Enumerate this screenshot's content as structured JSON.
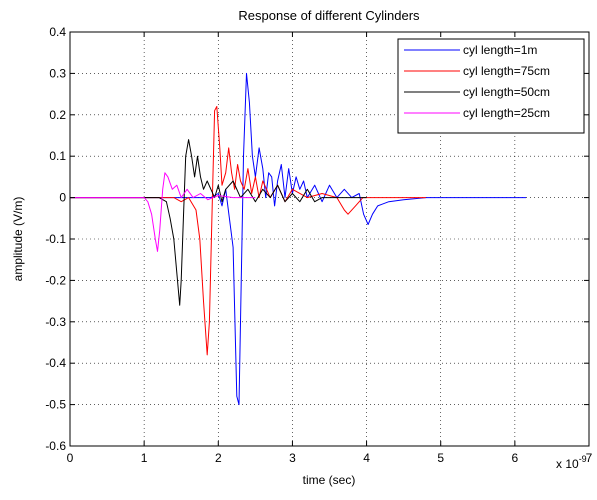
{
  "chart_data": {
    "type": "line",
    "title": "Response of different Cylinders",
    "xlabel": "time (sec)",
    "ylabel": "amplitude (V/m)",
    "x_multiplier_label": "x 10",
    "x_multiplier_exponent": "-9",
    "xlim": [
      0,
      7
    ],
    "ylim": [
      -0.6,
      0.4
    ],
    "xticks": [
      "0",
      "1",
      "2",
      "3",
      "4",
      "5",
      "6",
      "7"
    ],
    "yticks": [
      "-0.6",
      "-0.5",
      "-0.4",
      "-0.3",
      "-0.2",
      "-0.1",
      "0",
      "0.1",
      "0.2",
      "0.3",
      "0.4"
    ],
    "grid": true,
    "legend_position": "top-right",
    "series": [
      {
        "name": "cyl length=1m",
        "color": "#0000ff",
        "points": [
          [
            0,
            0
          ],
          [
            1.9,
            0
          ],
          [
            2.0,
            0.01
          ],
          [
            2.05,
            -0.02
          ],
          [
            2.1,
            0.02
          ],
          [
            2.15,
            -0.05
          ],
          [
            2.2,
            -0.12
          ],
          [
            2.25,
            -0.48
          ],
          [
            2.28,
            -0.5
          ],
          [
            2.3,
            -0.3
          ],
          [
            2.34,
            0.1
          ],
          [
            2.38,
            0.3
          ],
          [
            2.42,
            0.23
          ],
          [
            2.46,
            0.1
          ],
          [
            2.5,
            0.05
          ],
          [
            2.55,
            0.12
          ],
          [
            2.6,
            0.07
          ],
          [
            2.64,
            0.0
          ],
          [
            2.68,
            0.06
          ],
          [
            2.72,
            0.05
          ],
          [
            2.76,
            -0.02
          ],
          [
            2.8,
            0.04
          ],
          [
            2.85,
            0.08
          ],
          [
            2.9,
            0.0
          ],
          [
            2.95,
            0.07
          ],
          [
            3.0,
            0.01
          ],
          [
            3.05,
            0.05
          ],
          [
            3.1,
            0.02
          ],
          [
            3.15,
            0.04
          ],
          [
            3.2,
            0.0
          ],
          [
            3.3,
            0.03
          ],
          [
            3.4,
            -0.01
          ],
          [
            3.5,
            0.03
          ],
          [
            3.6,
            0.0
          ],
          [
            3.7,
            0.02
          ],
          [
            3.8,
            0.0
          ],
          [
            3.9,
            0.01
          ],
          [
            3.96,
            -0.04
          ],
          [
            4.02,
            -0.065
          ],
          [
            4.08,
            -0.04
          ],
          [
            4.15,
            -0.02
          ],
          [
            4.3,
            -0.01
          ],
          [
            4.5,
            -0.005
          ],
          [
            4.8,
            0
          ],
          [
            5.5,
            0
          ],
          [
            6.15,
            0
          ]
        ]
      },
      {
        "name": "cyl length=75cm",
        "color": "#ff0000",
        "points": [
          [
            0,
            0
          ],
          [
            1.4,
            0
          ],
          [
            1.5,
            -0.01
          ],
          [
            1.6,
            0.0
          ],
          [
            1.7,
            -0.03
          ],
          [
            1.75,
            -0.1
          ],
          [
            1.8,
            -0.25
          ],
          [
            1.85,
            -0.38
          ],
          [
            1.88,
            -0.3
          ],
          [
            1.92,
            0.0
          ],
          [
            1.95,
            0.21
          ],
          [
            1.98,
            0.22
          ],
          [
            2.02,
            0.12
          ],
          [
            2.05,
            0.03
          ],
          [
            2.1,
            0.06
          ],
          [
            2.14,
            0.12
          ],
          [
            2.18,
            0.06
          ],
          [
            2.22,
            0.02
          ],
          [
            2.26,
            0.08
          ],
          [
            2.3,
            0.04
          ],
          [
            2.35,
            0.02
          ],
          [
            2.4,
            0.07
          ],
          [
            2.45,
            0.01
          ],
          [
            2.5,
            0.05
          ],
          [
            2.55,
            0.0
          ],
          [
            2.6,
            0.04
          ],
          [
            2.7,
            0.0
          ],
          [
            2.8,
            0.03
          ],
          [
            2.9,
            -0.01
          ],
          [
            3.0,
            0.02
          ],
          [
            3.2,
            0.0
          ],
          [
            3.4,
            0.01
          ],
          [
            3.6,
            0.0
          ],
          [
            3.7,
            -0.03
          ],
          [
            3.75,
            -0.04
          ],
          [
            3.85,
            -0.02
          ],
          [
            3.95,
            0.0
          ],
          [
            4.2,
            0
          ],
          [
            4.8,
            0
          ]
        ]
      },
      {
        "name": "cyl length=50cm",
        "color": "#000000",
        "points": [
          [
            0,
            0
          ],
          [
            1.2,
            0
          ],
          [
            1.3,
            -0.01
          ],
          [
            1.35,
            -0.05
          ],
          [
            1.4,
            -0.1
          ],
          [
            1.45,
            -0.2
          ],
          [
            1.48,
            -0.26
          ],
          [
            1.5,
            -0.2
          ],
          [
            1.53,
            -0.05
          ],
          [
            1.56,
            0.1
          ],
          [
            1.6,
            0.14
          ],
          [
            1.64,
            0.1
          ],
          [
            1.68,
            0.05
          ],
          [
            1.72,
            0.1
          ],
          [
            1.76,
            0.05
          ],
          [
            1.8,
            0.02
          ],
          [
            1.85,
            0.04
          ],
          [
            1.9,
            0.02
          ],
          [
            1.95,
            0.0
          ],
          [
            2.0,
            0.03
          ],
          [
            2.05,
            -0.01
          ],
          [
            2.1,
            0.02
          ],
          [
            2.2,
            0.04
          ],
          [
            2.3,
            0.0
          ],
          [
            2.4,
            0.02
          ],
          [
            2.5,
            -0.01
          ],
          [
            2.6,
            0.02
          ],
          [
            2.7,
            0.0
          ],
          [
            2.8,
            0.03
          ],
          [
            2.9,
            -0.01
          ],
          [
            3.0,
            0.01
          ],
          [
            3.1,
            -0.01
          ],
          [
            3.2,
            0.02
          ],
          [
            3.3,
            -0.01
          ],
          [
            3.4,
            0.0
          ],
          [
            3.6,
            0
          ],
          [
            4.0,
            0
          ]
        ]
      },
      {
        "name": "cyl length=25cm",
        "color": "#ff00ff",
        "points": [
          [
            0,
            0
          ],
          [
            1.0,
            0
          ],
          [
            1.05,
            -0.01
          ],
          [
            1.1,
            -0.04
          ],
          [
            1.15,
            -0.1
          ],
          [
            1.18,
            -0.13
          ],
          [
            1.21,
            -0.08
          ],
          [
            1.25,
            0.02
          ],
          [
            1.28,
            0.06
          ],
          [
            1.32,
            0.05
          ],
          [
            1.38,
            0.02
          ],
          [
            1.44,
            0.03
          ],
          [
            1.5,
            0.0
          ],
          [
            1.58,
            0.02
          ],
          [
            1.66,
            0.0
          ],
          [
            1.76,
            0.01
          ],
          [
            1.86,
            -0.005
          ],
          [
            2.0,
            0.005
          ],
          [
            2.2,
            0
          ],
          [
            2.5,
            0
          ]
        ]
      }
    ]
  }
}
